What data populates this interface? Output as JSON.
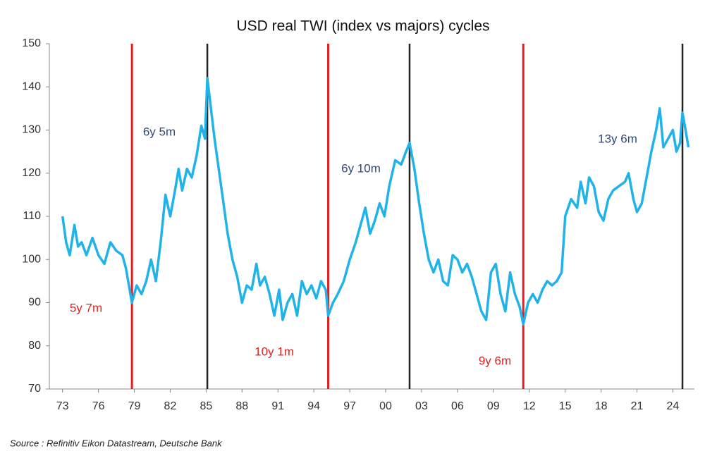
{
  "chart_data": {
    "type": "line",
    "title": "USD real TWI (index vs majors) cycles",
    "source": "Source : Refinitiv Eikon Datastream, Deutsche Bank",
    "xlim": [
      1971.9,
      2025.8
    ],
    "ylim": [
      70,
      150
    ],
    "yticks": [
      70,
      80,
      90,
      100,
      110,
      120,
      130,
      140,
      150
    ],
    "xticks": [
      {
        "value": 1973,
        "label": "73"
      },
      {
        "value": 1976,
        "label": "76"
      },
      {
        "value": 1979,
        "label": "79"
      },
      {
        "value": 1982,
        "label": "82"
      },
      {
        "value": 1985,
        "label": "85"
      },
      {
        "value": 1988,
        "label": "88"
      },
      {
        "value": 1991,
        "label": "91"
      },
      {
        "value": 1994,
        "label": "94"
      },
      {
        "value": 1997,
        "label": "97"
      },
      {
        "value": 2000,
        "label": "00"
      },
      {
        "value": 2003,
        "label": "03"
      },
      {
        "value": 2006,
        "label": "06"
      },
      {
        "value": 2009,
        "label": "09"
      },
      {
        "value": 2012,
        "label": "12"
      },
      {
        "value": 2015,
        "label": "15"
      },
      {
        "value": 2018,
        "label": "18"
      },
      {
        "value": 2021,
        "label": "21"
      },
      {
        "value": 2024,
        "label": "24"
      }
    ],
    "series": [
      {
        "color": "#1fb3ea",
        "x": [
          1973.0,
          1973.3,
          1973.6,
          1974.0,
          1974.3,
          1974.6,
          1975.0,
          1975.5,
          1976.0,
          1976.5,
          1977.0,
          1977.5,
          1978.0,
          1978.3,
          1978.8,
          1979.2,
          1979.6,
          1980.0,
          1980.4,
          1980.8,
          1981.2,
          1981.6,
          1982.0,
          1982.4,
          1982.7,
          1983.0,
          1983.4,
          1983.8,
          1984.2,
          1984.6,
          1984.9,
          1985.1,
          1985.4,
          1985.7,
          1986.0,
          1986.4,
          1986.8,
          1987.2,
          1987.6,
          1988.0,
          1988.4,
          1988.8,
          1989.2,
          1989.5,
          1989.9,
          1990.3,
          1990.7,
          1991.1,
          1991.4,
          1991.8,
          1992.2,
          1992.6,
          1993.0,
          1993.4,
          1993.8,
          1994.2,
          1994.6,
          1995.0,
          1995.2,
          1995.6,
          1996.0,
          1996.5,
          1997.0,
          1997.5,
          1997.9,
          1998.3,
          1998.7,
          1999.1,
          1999.5,
          1999.9,
          2000.3,
          2000.8,
          2001.3,
          2001.7,
          2002.0,
          2002.4,
          2002.8,
          2003.2,
          2003.6,
          2004.0,
          2004.4,
          2004.8,
          2005.2,
          2005.6,
          2006.0,
          2006.4,
          2006.8,
          2007.2,
          2007.6,
          2008.0,
          2008.4,
          2008.8,
          2009.2,
          2009.6,
          2010.0,
          2010.4,
          2010.8,
          2011.2,
          2011.5,
          2011.9,
          2012.3,
          2012.7,
          2013.1,
          2013.5,
          2013.9,
          2014.3,
          2014.7,
          2015.0,
          2015.5,
          2016.0,
          2016.3,
          2016.7,
          2017.0,
          2017.4,
          2017.8,
          2018.2,
          2018.6,
          2019.0,
          2019.5,
          2020.0,
          2020.3,
          2020.7,
          2021.0,
          2021.4,
          2021.8,
          2022.2,
          2022.6,
          2022.9,
          2023.2,
          2023.6,
          2024.0,
          2024.3,
          2024.6,
          2024.8,
          2025.0,
          2025.3
        ],
        "values": [
          110,
          104,
          101,
          108,
          103,
          104,
          101,
          105,
          101,
          99,
          104,
          102,
          101,
          98,
          90,
          94,
          92,
          95,
          100,
          95,
          104,
          115,
          110,
          116,
          121,
          116,
          121,
          119,
          124,
          131,
          128,
          142,
          135,
          128,
          122,
          114,
          106,
          100,
          96,
          90,
          94,
          93,
          99,
          94,
          96,
          92,
          87,
          93,
          86,
          90,
          92,
          87,
          95,
          92,
          94,
          91,
          95,
          93,
          87,
          90,
          92,
          95,
          100,
          104,
          108,
          112,
          106,
          109,
          113,
          110,
          117,
          123,
          122,
          125,
          127,
          121,
          113,
          106,
          100,
          97,
          100,
          95,
          94,
          101,
          100,
          97,
          99,
          96,
          92,
          88,
          86,
          97,
          99,
          92,
          88,
          97,
          92,
          89,
          85,
          90,
          92,
          90,
          93,
          95,
          94,
          95,
          97,
          110,
          114,
          112,
          118,
          113,
          119,
          117,
          111,
          109,
          114,
          116,
          117,
          118,
          120,
          114,
          111,
          113,
          119,
          125,
          130,
          135,
          126,
          128,
          130,
          125,
          127,
          134,
          131,
          126
        ]
      }
    ],
    "markers": [
      {
        "x": 1978.8,
        "color": "#e02020"
      },
      {
        "x": 1985.1,
        "color": "#222222"
      },
      {
        "x": 1995.2,
        "color": "#e02020"
      },
      {
        "x": 2002.0,
        "color": "#222222"
      },
      {
        "x": 2011.5,
        "color": "#e02020"
      },
      {
        "x": 2024.8,
        "color": "#222222"
      }
    ],
    "annotations": [
      {
        "text": "5y 7m",
        "color": "#e02020"
      },
      {
        "text": "6y 5m",
        "color": "#2e4a7a"
      },
      {
        "text": "10y 1m",
        "color": "#e02020"
      },
      {
        "text": "6y 10m",
        "color": "#2e4a7a"
      },
      {
        "text": "9y 6m",
        "color": "#e02020"
      },
      {
        "text": "13y 6m",
        "color": "#2e4a7a"
      }
    ]
  }
}
